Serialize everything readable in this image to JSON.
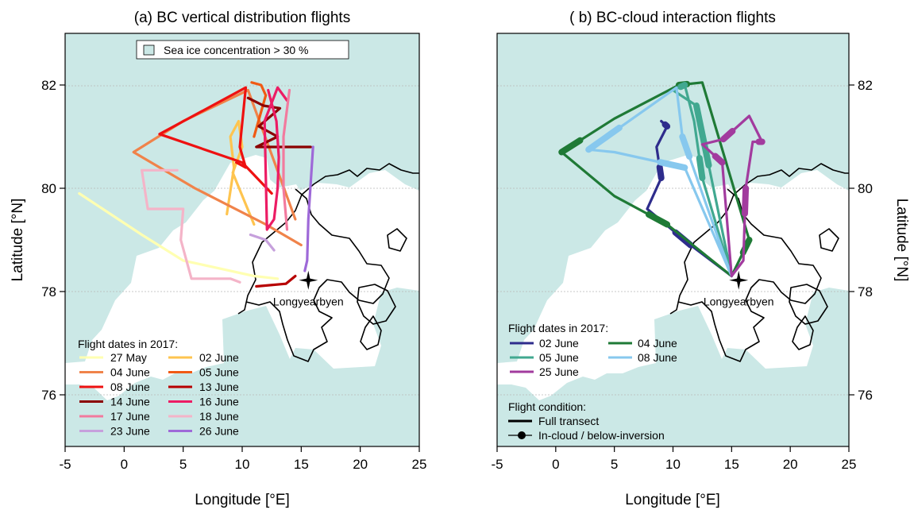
{
  "colors": {
    "ice": "#cbe8e6",
    "land": "#ffffff",
    "coast": "#000000",
    "grid": "#b8b8b8",
    "frame": "#000000"
  },
  "chart_data": [
    {
      "type": "map",
      "title": "(a) BC vertical distribution flights",
      "xlabel": "Longitude [°E]",
      "ylabel": "Latitude [°N]",
      "xlim": [
        -5,
        25
      ],
      "ylim": [
        75,
        83
      ],
      "xticks": [
        "-5",
        "0",
        "5",
        "10",
        "15",
        "20",
        "25"
      ],
      "yticks": [
        "76",
        "78",
        "80",
        "82"
      ],
      "ice_legend": "Sea ice concentration > 30 %",
      "legend_title": "Flight dates in 2017:",
      "place": {
        "name": "Longyearbyen",
        "lon": 15.6,
        "lat": 78.22
      },
      "series": [
        {
          "name": "27 May",
          "color": "#ffffb2",
          "path": [
            [
              -3.8,
              79.9
            ],
            [
              1.5,
              79.1
            ],
            [
              5.0,
              78.6
            ],
            [
              8.0,
              78.45
            ],
            [
              11.0,
              78.3
            ],
            [
              13.0,
              78.25
            ]
          ]
        },
        {
          "name": "02 June",
          "color": "#fec44f",
          "path": [
            [
              8.7,
              79.5
            ],
            [
              9.3,
              80.4
            ],
            [
              9.0,
              81.0
            ],
            [
              9.7,
              81.3
            ],
            [
              10.0,
              80.8
            ],
            [
              9.2,
              80.3
            ],
            [
              11.0,
              79.3
            ]
          ]
        },
        {
          "name": "04 June",
          "color": "#f0834a",
          "path": [
            [
              15.0,
              78.9
            ],
            [
              12.0,
              79.3
            ],
            [
              6.0,
              80.0
            ],
            [
              0.8,
              80.7
            ],
            [
              5.0,
              81.3
            ],
            [
              10.5,
              81.9
            ],
            [
              14.5,
              79.4
            ]
          ]
        },
        {
          "name": "05 June",
          "color": "#f05a14",
          "path": [
            [
              10.8,
              82.05
            ],
            [
              11.6,
              82.0
            ],
            [
              12.0,
              81.8
            ],
            [
              11.5,
              81.4
            ],
            [
              11.0,
              81.0
            ]
          ]
        },
        {
          "name": "08 June",
          "color": "#ee1111",
          "path": [
            [
              12.5,
              79.9
            ],
            [
              10.0,
              80.5
            ],
            [
              3.0,
              81.05
            ],
            [
              10.3,
              81.95
            ],
            [
              9.8,
              80.8
            ],
            [
              10.3,
              80.4
            ],
            [
              9.5,
              80.5
            ]
          ]
        },
        {
          "name": "13 June",
          "color": "#b70000",
          "path": [
            [
              11.2,
              78.1
            ],
            [
              13.7,
              78.15
            ],
            [
              14.5,
              78.3
            ]
          ]
        },
        {
          "name": "14 June",
          "color": "#8b0000",
          "path": [
            [
              10.5,
              81.75
            ],
            [
              11.8,
              81.6
            ],
            [
              13.2,
              81.55
            ],
            [
              11.4,
              81.2
            ],
            [
              13.0,
              81.0
            ],
            [
              11.2,
              80.8
            ],
            [
              15.8,
              80.8
            ]
          ]
        },
        {
          "name": "16 June",
          "color": "#ec1c64",
          "path": [
            [
              12.2,
              81.9
            ],
            [
              12.9,
              81.3
            ],
            [
              13.1,
              80.6
            ],
            [
              13.0,
              80.0
            ],
            [
              12.7,
              79.4
            ],
            [
              12.1,
              79.2
            ],
            [
              11.9,
              81.3
            ],
            [
              13.0,
              81.95
            ],
            [
              13.8,
              81.7
            ]
          ]
        },
        {
          "name": "17 June",
          "color": "#f27a9e",
          "path": [
            [
              14.0,
              81.9
            ],
            [
              13.5,
              81.0
            ],
            [
              13.5,
              80.0
            ],
            [
              13.8,
              79.2
            ]
          ]
        },
        {
          "name": "18 June",
          "color": "#f4b4c8",
          "path": [
            [
              4.5,
              80.35
            ],
            [
              1.5,
              80.35
            ],
            [
              2.0,
              79.6
            ],
            [
              5.0,
              79.6
            ],
            [
              4.8,
              79.0
            ],
            [
              5.7,
              78.25
            ],
            [
              9.0,
              78.25
            ],
            [
              9.8,
              78.18
            ]
          ]
        },
        {
          "name": "23 June",
          "color": "#c6a0dc",
          "path": [
            [
              10.7,
              79.1
            ],
            [
              12.0,
              79.0
            ],
            [
              12.7,
              78.8
            ]
          ]
        },
        {
          "name": "26 June",
          "color": "#9e69d8",
          "path": [
            [
              16.0,
              80.8
            ],
            [
              15.6,
              79.4
            ],
            [
              15.5,
              78.6
            ],
            [
              15.3,
              78.4
            ]
          ]
        }
      ]
    },
    {
      "type": "map",
      "title": "( b) BC-cloud interaction flights",
      "xlabel": "Longitude [°E]",
      "ylabel": "Latitude [°N]",
      "xlim": [
        -5,
        25
      ],
      "ylim": [
        75,
        83
      ],
      "xticks": [
        "-5",
        "0",
        "5",
        "10",
        "15",
        "20",
        "25"
      ],
      "yticks": [
        "76",
        "78",
        "80",
        "82"
      ],
      "legend_title": "Flight dates in 2017:",
      "condition_title": "Flight condition:",
      "condition_items": [
        "Full transect",
        "In-cloud / below-inversion"
      ],
      "place": {
        "name": "Longyearbyen",
        "lon": 15.6,
        "lat": 78.22
      },
      "series": [
        {
          "name": "02 June",
          "color": "#2e2c8c",
          "path": [
            [
              15.0,
              78.3
            ],
            [
              11.5,
              78.9
            ],
            [
              7.8,
              79.6
            ],
            [
              9.0,
              80.2
            ],
            [
              8.6,
              80.8
            ],
            [
              9.5,
              81.2
            ],
            [
              9.0,
              81.3
            ]
          ]
        },
        {
          "name": "04 June",
          "color": "#1f7a36",
          "path": [
            [
              15.0,
              78.3
            ],
            [
              9.5,
              79.3
            ],
            [
              5.0,
              79.85
            ],
            [
              0.5,
              80.7
            ],
            [
              5.0,
              81.35
            ],
            [
              10.5,
              82.0
            ],
            [
              12.5,
              82.05
            ],
            [
              16.5,
              79.0
            ],
            [
              15.0,
              78.3
            ]
          ]
        },
        {
          "name": "05 June",
          "color": "#41a890",
          "path": [
            [
              15.0,
              78.3
            ],
            [
              12.5,
              80.2
            ],
            [
              11.8,
              81.3
            ],
            [
              11.0,
              82.0
            ],
            [
              10.0,
              81.9
            ],
            [
              12.0,
              81.6
            ],
            [
              15.0,
              78.3
            ]
          ]
        },
        {
          "name": "08 June",
          "color": "#87c8ee",
          "path": [
            [
              15.0,
              78.3
            ],
            [
              11.0,
              80.4
            ],
            [
              5.0,
              80.7
            ],
            [
              2.8,
              80.75
            ],
            [
              10.3,
              81.95
            ],
            [
              10.8,
              81.0
            ],
            [
              12.5,
              79.9
            ],
            [
              15.0,
              78.3
            ]
          ]
        },
        {
          "name": "25 June",
          "color": "#a23b9e",
          "path": [
            [
              15.0,
              78.3
            ],
            [
              14.2,
              80.5
            ],
            [
              12.5,
              80.85
            ],
            [
              14.3,
              80.95
            ],
            [
              16.5,
              81.4
            ],
            [
              17.6,
              80.9
            ],
            [
              16.8,
              80.9
            ],
            [
              16.2,
              80.0
            ],
            [
              16.0,
              78.6
            ],
            [
              15.0,
              78.3
            ]
          ]
        }
      ]
    }
  ]
}
